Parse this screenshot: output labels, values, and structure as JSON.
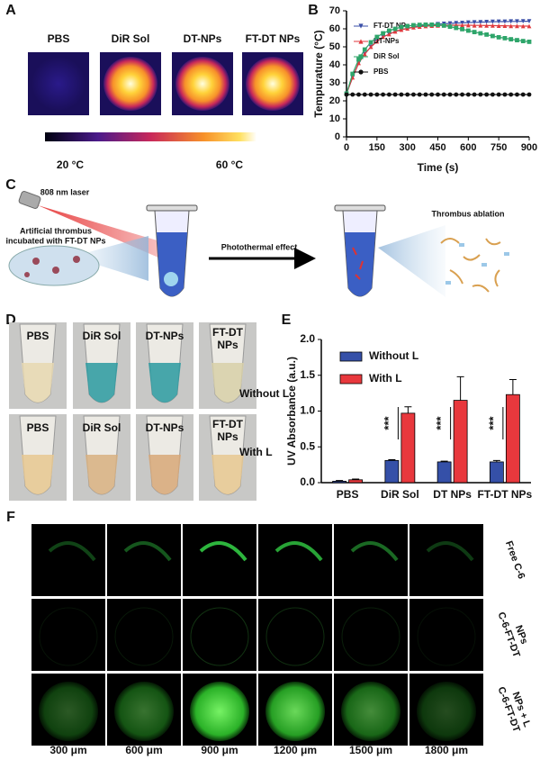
{
  "panel_labels": [
    "A",
    "B",
    "C",
    "D",
    "E",
    "F"
  ],
  "panel_a": {
    "labels": [
      "PBS",
      "DiR Sol",
      "DT-NPs",
      "FT-DT NPs"
    ],
    "colorbar_labels": [
      "20 °C",
      "60 °C"
    ]
  },
  "panel_c": {
    "laser": "808 nm laser",
    "thrombus": [
      "Artificial thrombus",
      "incubated with FT-DT NPs"
    ],
    "arrow": "Photothermal effect",
    "result": "Thrombus ablation"
  },
  "panel_d": {
    "top_labels": [
      [
        "PBS"
      ],
      [
        "DiR Sol"
      ],
      [
        "DT-NPs"
      ],
      [
        "FT-DT",
        "NPs"
      ]
    ],
    "top_row": "Without L",
    "bottom_labels": [
      [
        "PBS"
      ],
      [
        "DiR Sol"
      ],
      [
        "DT-NPs"
      ],
      [
        "FT-DT",
        "NPs"
      ]
    ],
    "bottom_row": "With L"
  },
  "panel_f": {
    "rows": [
      [
        "Free C-6"
      ],
      [
        "C-6-FT-DT",
        "NPs"
      ],
      [
        "C-6-FT-DT",
        "NPs + L"
      ]
    ],
    "columns": [
      "300 μm",
      "600 μm",
      "900 μm",
      "1200 μm",
      "1500 μm",
      "1800 μm"
    ]
  },
  "chart_data": [
    {
      "type": "line",
      "xlabel": "Time (s)",
      "ylabel": "Tempurature (°C)",
      "x": [
        0,
        30,
        60,
        90,
        120,
        150,
        180,
        210,
        240,
        270,
        300,
        330,
        360,
        390,
        420,
        450,
        480,
        510,
        540,
        570,
        600,
        630,
        660,
        690,
        720,
        750,
        780,
        810,
        840,
        870,
        900
      ],
      "series": [
        {
          "name": "FT-DT NPs",
          "color": "#3a4fa8",
          "marker": "triangle-down",
          "values": [
            24,
            33,
            41,
            46,
            50,
            53,
            55.5,
            57,
            58.5,
            59.5,
            60.3,
            61,
            61.5,
            62,
            62.3,
            62.6,
            62.8,
            63,
            63.2,
            63.3,
            63.5,
            63.6,
            63.7,
            63.8,
            63.9,
            64,
            64,
            64.1,
            64.1,
            64.2,
            64.2
          ]
        },
        {
          "name": "DT-NPs",
          "color": "#e03a3e",
          "marker": "triangle-up",
          "values": [
            24,
            33,
            41,
            46,
            50,
            53,
            55.5,
            57,
            58.5,
            59.5,
            60.2,
            60.8,
            61.2,
            61.5,
            61.7,
            61.8,
            61.9,
            62,
            62,
            62,
            62,
            61.9,
            61.9,
            61.8,
            61.8,
            61.7,
            61.7,
            61.6,
            61.6,
            61.5,
            61.5
          ]
        },
        {
          "name": "DiR Sol",
          "color": "#2ea56a",
          "marker": "square",
          "values": [
            24,
            35,
            43,
            48.5,
            52.5,
            55.5,
            57.5,
            59,
            60,
            61,
            61.5,
            62,
            62.2,
            62.3,
            62.3,
            62.2,
            61.8,
            61.2,
            60.5,
            59.8,
            59,
            58.2,
            57.5,
            56.8,
            56,
            55.3,
            54.8,
            54.2,
            53.7,
            53.2,
            52.8
          ]
        },
        {
          "name": "PBS",
          "color": "#111111",
          "marker": "circle",
          "values": [
            23.5,
            23.5,
            23.5,
            23.5,
            23.5,
            23.5,
            23.5,
            23.5,
            23.5,
            23.5,
            23.5,
            23.5,
            23.5,
            23.5,
            23.5,
            23.5,
            23.5,
            23.5,
            23.5,
            23.5,
            23.5,
            23.5,
            23.5,
            23.5,
            23.5,
            23.5,
            23.5,
            23.5,
            23.5,
            23.5,
            23.5
          ]
        }
      ],
      "xlim": [
        0,
        900
      ],
      "ylim": [
        0,
        70
      ],
      "xticks": [
        0,
        150,
        300,
        450,
        600,
        750,
        900
      ],
      "yticks": [
        0,
        10,
        20,
        30,
        40,
        50,
        60,
        70
      ],
      "legend": "upper left"
    },
    {
      "type": "bar",
      "ylabel": "UV Absorbance (a.u.)",
      "categories": [
        "PBS",
        "DiR Sol",
        "DT NPs",
        "FT-DT NPs"
      ],
      "series": [
        {
          "name": "Without L",
          "color": "#3550a8",
          "values": [
            0.02,
            0.31,
            0.29,
            0.29
          ],
          "errors": [
            0.01,
            0.01,
            0.01,
            0.02
          ]
        },
        {
          "name": "With L",
          "color": "#e8383d",
          "values": [
            0.04,
            0.97,
            1.15,
            1.23
          ],
          "errors": [
            0.01,
            0.09,
            0.33,
            0.21
          ]
        }
      ],
      "annotations": [
        "***",
        "***",
        "***"
      ],
      "ylim": [
        0,
        2
      ],
      "yticks": [
        {
          "value": 0,
          "label": "0.0"
        },
        {
          "value": 0.5,
          "label": "0.5"
        },
        {
          "value": 1,
          "label": "1.0"
        },
        {
          "value": 1.5,
          "label": "1.5"
        },
        {
          "value": 2,
          "label": "2.0"
        }
      ],
      "legend": "upper left"
    }
  ]
}
